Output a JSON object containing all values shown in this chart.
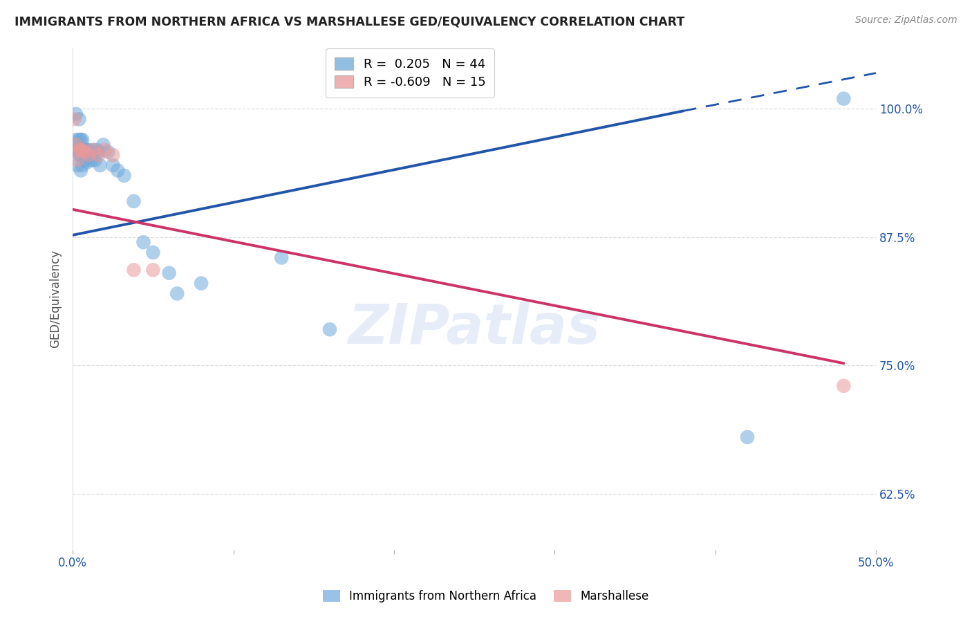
{
  "title": "IMMIGRANTS FROM NORTHERN AFRICA VS MARSHALLESE GED/EQUIVALENCY CORRELATION CHART",
  "source": "Source: ZipAtlas.com",
  "ylabel": "GED/Equivalency",
  "xlim": [
    0.0,
    0.5
  ],
  "ylim": [
    0.57,
    1.06
  ],
  "yticks": [
    0.625,
    0.75,
    0.875,
    1.0
  ],
  "yticklabels": [
    "62.5%",
    "75.0%",
    "87.5%",
    "100.0%"
  ],
  "blue_R": 0.205,
  "blue_N": 44,
  "pink_R": -0.609,
  "pink_N": 15,
  "blue_color": "#6fa8dc",
  "pink_color": "#ea9999",
  "blue_line_color": "#2255aa",
  "pink_line_color": "#cc3366",
  "legend_blue_label": "Immigrants from Northern Africa",
  "legend_pink_label": "Marshallese",
  "blue_x": [
    0.001,
    0.002,
    0.002,
    0.003,
    0.003,
    0.004,
    0.004,
    0.004,
    0.005,
    0.005,
    0.005,
    0.005,
    0.006,
    0.006,
    0.006,
    0.007,
    0.007,
    0.008,
    0.008,
    0.009,
    0.009,
    0.01,
    0.011,
    0.012,
    0.013,
    0.014,
    0.015,
    0.016,
    0.017,
    0.019,
    0.022,
    0.025,
    0.028,
    0.032,
    0.038,
    0.044,
    0.05,
    0.06,
    0.065,
    0.08,
    0.13,
    0.16,
    0.42,
    0.48
  ],
  "blue_y": [
    0.96,
    0.995,
    0.97,
    0.96,
    0.945,
    0.97,
    0.955,
    0.99,
    0.97,
    0.96,
    0.955,
    0.94,
    0.97,
    0.96,
    0.945,
    0.96,
    0.955,
    0.96,
    0.95,
    0.96,
    0.948,
    0.96,
    0.955,
    0.95,
    0.96,
    0.95,
    0.96,
    0.958,
    0.945,
    0.965,
    0.958,
    0.945,
    0.94,
    0.935,
    0.91,
    0.87,
    0.86,
    0.84,
    0.82,
    0.83,
    0.855,
    0.785,
    0.68,
    1.01
  ],
  "pink_x": [
    0.001,
    0.002,
    0.003,
    0.004,
    0.005,
    0.006,
    0.008,
    0.01,
    0.013,
    0.016,
    0.02,
    0.025,
    0.038,
    0.05,
    0.48
  ],
  "pink_y": [
    0.99,
    0.965,
    0.95,
    0.96,
    0.96,
    0.96,
    0.958,
    0.955,
    0.96,
    0.955,
    0.96,
    0.955,
    0.843,
    0.843,
    0.73
  ],
  "blue_line_x_solid_end": 0.38,
  "blue_line_x_end": 0.5,
  "pink_line_x_start": 0.001,
  "pink_line_x_end": 0.48,
  "watermark_text": "ZIPatlas",
  "grid_color": "#dddddd",
  "background_color": "#ffffff"
}
